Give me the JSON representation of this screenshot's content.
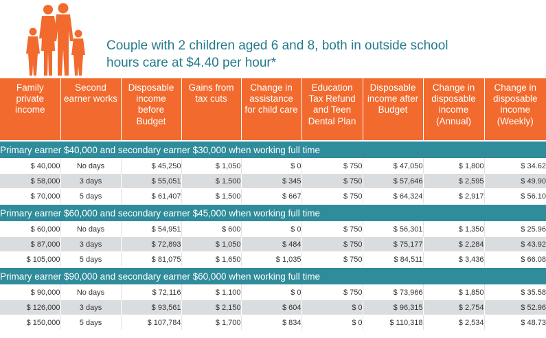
{
  "title": {
    "line1": "Couple with 2 children aged 6 and 8, both in outside school",
    "line2": "hours care at $4.40 per hour*"
  },
  "colors": {
    "header": "#f26a2e",
    "section": "#2f8c9b",
    "title_text": "#247b8c",
    "alt_row": "#d9dde0"
  },
  "figure": {
    "icon": "family-icon"
  },
  "columns": [
    [
      "Family",
      "private",
      "income"
    ],
    [
      "Second",
      "earner works"
    ],
    [
      "Disposable",
      "income",
      "before",
      "Budget"
    ],
    [
      "Gains from",
      "tax cuts"
    ],
    [
      "Change in",
      "assistance",
      "for child care"
    ],
    [
      "Education",
      "Tax Refund",
      "and Teen",
      "Dental Plan"
    ],
    [
      "Disposable",
      "income after",
      "Budget"
    ],
    [
      "Change in",
      "disposable",
      "income",
      "(Annual)"
    ],
    [
      "Change in",
      "disposable",
      "income",
      "(Weekly)"
    ]
  ],
  "sections": [
    {
      "title": "Primary earner $40,000 and secondary earner $30,000 when working full time",
      "rows": [
        [
          "$ 40,000",
          "No days",
          "$ 45,250",
          "$ 1,050",
          "$ 0",
          "$ 750",
          "$ 47,050",
          "$ 1,800",
          "$ 34.62"
        ],
        [
          "$ 58,000",
          "3 days",
          "$ 55,051",
          "$ 1,500",
          "$ 345",
          "$ 750",
          "$ 57,646",
          "$ 2,595",
          "$ 49.90"
        ],
        [
          "$ 70,000",
          "5 days",
          "$ 61,407",
          "$ 1,500",
          "$ 667",
          "$ 750",
          "$ 64,324",
          "$ 2,917",
          "$ 56.10"
        ]
      ]
    },
    {
      "title": "Primary earner $60,000 and secondary earner $45,000 when working full time",
      "rows": [
        [
          "$ 60,000",
          "No days",
          "$ 54,951",
          "$ 600",
          "$ 0",
          "$ 750",
          "$ 56,301",
          "$ 1,350",
          "$ 25.96"
        ],
        [
          "$ 87,000",
          "3 days",
          "$ 72,893",
          "$ 1,050",
          "$ 484",
          "$ 750",
          "$ 75,177",
          "$ 2,284",
          "$ 43.92"
        ],
        [
          "$ 105,000",
          "5 days",
          "$ 81,075",
          "$ 1,650",
          "$ 1,035",
          "$ 750",
          "$ 84,511",
          "$ 3,436",
          "$ 66.08"
        ]
      ]
    },
    {
      "title": "Primary earner $90,000 and secondary earner $60,000 when working full time",
      "rows": [
        [
          "$ 90,000",
          "No days",
          "$ 72,116",
          "$ 1,100",
          "$ 0",
          "$ 750",
          "$ 73,966",
          "$ 1,850",
          "$ 35.58"
        ],
        [
          "$ 126,000",
          "3 days",
          "$ 93,561",
          "$ 2,150",
          "$ 604",
          "$ 0",
          "$ 96,315",
          "$ 2,754",
          "$ 52.96"
        ],
        [
          "$ 150,000",
          "5 days",
          "$ 107,784",
          "$ 1,700",
          "$ 834",
          "$ 0",
          "$ 110,318",
          "$ 2,534",
          "$ 48.73"
        ]
      ]
    }
  ]
}
